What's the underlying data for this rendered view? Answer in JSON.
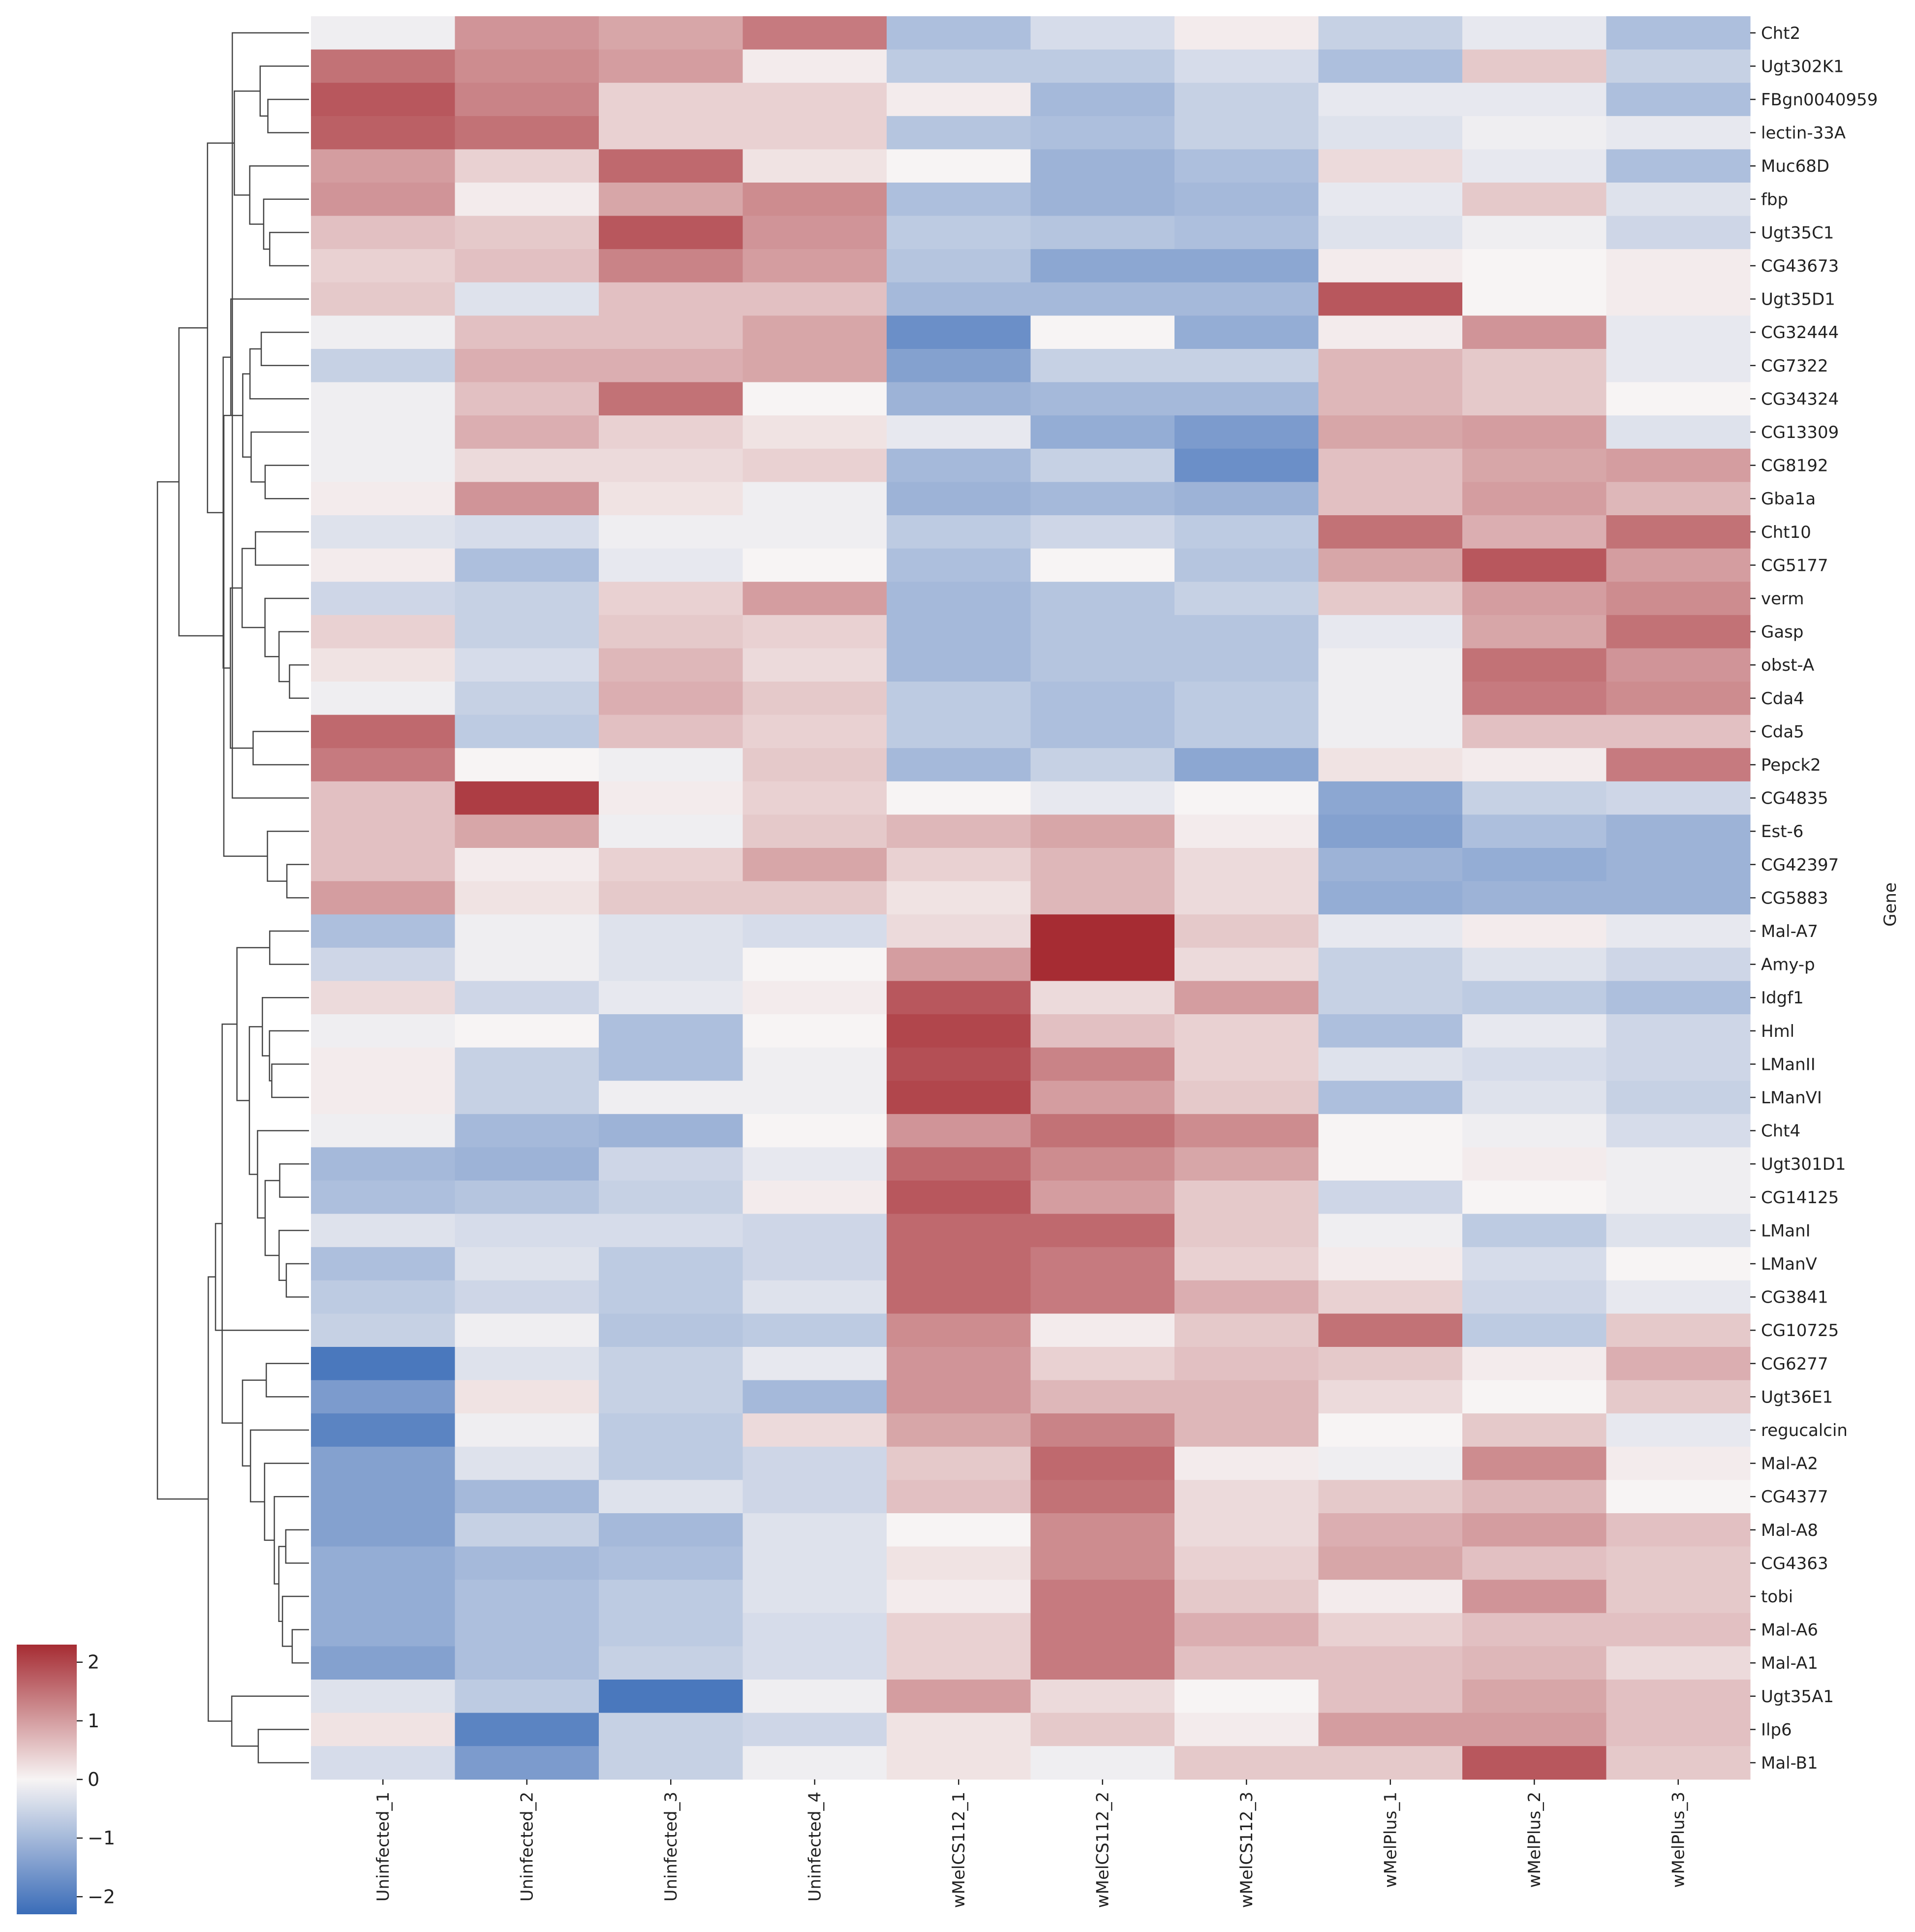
{
  "chart_data": {
    "type": "heatmap",
    "title": "",
    "ylabel": "Gene",
    "xlabel": "",
    "colormap": "vlag",
    "colors": {
      "low": "#3a6cb8",
      "mid": "#f7f4f4",
      "high": "#a62c33"
    },
    "vmin": -2.3,
    "vmax": 2.3,
    "colorbar_ticks": [
      2,
      1,
      0,
      -1,
      -2
    ],
    "colorbar_tick_labels": [
      "2",
      "1",
      "0",
      "−1",
      "−2"
    ],
    "legend_position": "bottom-left",
    "columns": [
      "Uninfected_1",
      "Uninfected_2",
      "Uninfected_3",
      "Uninfected_4",
      "wMelCS112_1",
      "wMelCS112_2",
      "wMelCS112_3",
      "wMelPlus_1",
      "wMelPlus_2",
      "wMelPlus_3"
    ],
    "rows": [
      {
        "gene": "Cht2",
        "values": [
          -0.1,
          1.1,
          0.9,
          1.4,
          -0.9,
          -0.4,
          0.1,
          -0.6,
          -0.2,
          -0.9
        ]
      },
      {
        "gene": "Ugt302K1",
        "values": [
          1.5,
          1.2,
          1.0,
          0.1,
          -0.7,
          -0.7,
          -0.4,
          -0.9,
          0.5,
          -0.6
        ]
      },
      {
        "gene": "FBgn0040959",
        "values": [
          1.8,
          1.3,
          0.4,
          0.4,
          0.1,
          -1.0,
          -0.6,
          -0.2,
          -0.2,
          -0.9
        ]
      },
      {
        "gene": "lectin-33A",
        "values": [
          1.7,
          1.5,
          0.4,
          0.4,
          -0.8,
          -0.9,
          -0.6,
          -0.3,
          -0.1,
          -0.2
        ]
      },
      {
        "gene": "Muc68D",
        "values": [
          1.0,
          0.4,
          1.6,
          0.2,
          0.0,
          -1.1,
          -0.9,
          0.3,
          -0.2,
          -0.9
        ]
      },
      {
        "gene": "fbp",
        "values": [
          1.1,
          0.1,
          0.9,
          1.2,
          -0.9,
          -1.1,
          -1.0,
          -0.2,
          0.5,
          -0.3
        ]
      },
      {
        "gene": "Ugt35C1",
        "values": [
          0.6,
          0.5,
          1.8,
          1.1,
          -0.7,
          -0.8,
          -0.9,
          -0.3,
          -0.1,
          -0.5
        ]
      },
      {
        "gene": "CG43673",
        "values": [
          0.4,
          0.6,
          1.3,
          1.0,
          -0.8,
          -1.3,
          -1.3,
          0.1,
          0.0,
          0.1
        ]
      },
      {
        "gene": "Ugt35D1",
        "values": [
          0.5,
          -0.3,
          0.6,
          0.6,
          -1.0,
          -1.0,
          -1.0,
          1.8,
          0.0,
          0.1
        ]
      },
      {
        "gene": "CG32444",
        "values": [
          -0.1,
          0.6,
          0.6,
          0.9,
          -1.7,
          0.0,
          -1.2,
          0.1,
          1.1,
          -0.2
        ]
      },
      {
        "gene": "CG7322",
        "values": [
          -0.6,
          0.8,
          0.8,
          0.9,
          -1.4,
          -0.6,
          -0.6,
          0.7,
          0.5,
          -0.2
        ]
      },
      {
        "gene": "CG34324",
        "values": [
          -0.1,
          0.6,
          1.5,
          0.0,
          -1.1,
          -1.0,
          -1.0,
          0.7,
          0.5,
          0.0
        ]
      },
      {
        "gene": "CG13309",
        "values": [
          -0.1,
          0.8,
          0.4,
          0.2,
          -0.2,
          -1.2,
          -1.5,
          0.9,
          1.0,
          -0.3
        ]
      },
      {
        "gene": "CG8192",
        "values": [
          -0.1,
          0.3,
          0.3,
          0.4,
          -1.0,
          -0.6,
          -1.7,
          0.6,
          0.9,
          1.0
        ]
      },
      {
        "gene": "Gba1a",
        "values": [
          0.1,
          1.1,
          0.2,
          -0.1,
          -1.1,
          -1.0,
          -1.1,
          0.6,
          1.0,
          0.7
        ]
      },
      {
        "gene": "Cht10",
        "values": [
          -0.3,
          -0.4,
          -0.1,
          -0.1,
          -0.7,
          -0.5,
          -0.7,
          1.5,
          0.8,
          1.5
        ]
      },
      {
        "gene": "CG5177",
        "values": [
          0.1,
          -0.9,
          -0.2,
          0.0,
          -0.9,
          0.0,
          -0.8,
          0.9,
          1.8,
          1.0
        ]
      },
      {
        "gene": "verm",
        "values": [
          -0.5,
          -0.6,
          0.4,
          1.0,
          -1.0,
          -0.8,
          -0.6,
          0.5,
          1.0,
          1.2
        ]
      },
      {
        "gene": "Gasp",
        "values": [
          0.4,
          -0.6,
          0.5,
          0.4,
          -1.0,
          -0.8,
          -0.8,
          -0.2,
          0.9,
          1.5
        ]
      },
      {
        "gene": "obst-A",
        "values": [
          0.2,
          -0.4,
          0.7,
          0.3,
          -1.0,
          -0.8,
          -0.8,
          -0.1,
          1.5,
          1.1
        ]
      },
      {
        "gene": "Cda4",
        "values": [
          -0.1,
          -0.6,
          0.8,
          0.5,
          -0.7,
          -0.9,
          -0.7,
          -0.1,
          1.4,
          1.2
        ]
      },
      {
        "gene": "Cda5",
        "values": [
          1.6,
          -0.7,
          0.6,
          0.4,
          -0.7,
          -0.9,
          -0.7,
          -0.1,
          0.6,
          0.6
        ]
      },
      {
        "gene": "Pepck2",
        "values": [
          1.4,
          0.0,
          -0.1,
          0.5,
          -1.0,
          -0.6,
          -1.3,
          0.2,
          0.1,
          1.4
        ]
      },
      {
        "gene": "CG4835",
        "values": [
          0.6,
          2.1,
          0.1,
          0.4,
          0.0,
          -0.2,
          0.0,
          -1.3,
          -0.6,
          -0.5
        ]
      },
      {
        "gene": "Est-6",
        "values": [
          0.6,
          0.9,
          -0.1,
          0.5,
          0.7,
          0.9,
          0.1,
          -1.4,
          -0.9,
          -1.1
        ]
      },
      {
        "gene": "CG42397",
        "values": [
          0.6,
          0.1,
          0.4,
          0.9,
          0.4,
          0.7,
          0.3,
          -1.1,
          -1.2,
          -1.1
        ]
      },
      {
        "gene": "CG5883",
        "values": [
          1.0,
          0.2,
          0.5,
          0.5,
          0.2,
          0.7,
          0.3,
          -1.2,
          -1.1,
          -1.1
        ]
      },
      {
        "gene": "Mal-A7",
        "values": [
          -0.9,
          -0.1,
          -0.3,
          -0.4,
          0.3,
          2.3,
          0.5,
          -0.2,
          0.1,
          -0.2
        ]
      },
      {
        "gene": "Amy-p",
        "values": [
          -0.5,
          -0.1,
          -0.3,
          0.0,
          1.0,
          2.3,
          0.3,
          -0.6,
          -0.3,
          -0.5
        ]
      },
      {
        "gene": "Idgf1",
        "values": [
          0.3,
          -0.5,
          -0.2,
          0.1,
          1.8,
          0.3,
          1.0,
          -0.6,
          -0.7,
          -0.9
        ]
      },
      {
        "gene": "Hml",
        "values": [
          -0.1,
          0.0,
          -0.9,
          0.0,
          2.0,
          0.6,
          0.4,
          -0.9,
          -0.2,
          -0.5
        ]
      },
      {
        "gene": "LManII",
        "values": [
          0.1,
          -0.6,
          -0.9,
          -0.1,
          1.9,
          1.3,
          0.4,
          -0.3,
          -0.4,
          -0.5
        ]
      },
      {
        "gene": "LManVI",
        "values": [
          0.1,
          -0.6,
          -0.1,
          -0.1,
          2.0,
          1.0,
          0.5,
          -0.9,
          -0.3,
          -0.6
        ]
      },
      {
        "gene": "Cht4",
        "values": [
          -0.1,
          -1.0,
          -1.1,
          0.0,
          1.1,
          1.5,
          1.2,
          0.0,
          -0.1,
          -0.4
        ]
      },
      {
        "gene": "Ugt301D1",
        "values": [
          -1.0,
          -1.1,
          -0.5,
          -0.2,
          1.6,
          1.2,
          0.9,
          0.0,
          0.1,
          -0.1
        ]
      },
      {
        "gene": "CG14125",
        "values": [
          -0.9,
          -0.8,
          -0.6,
          0.1,
          1.8,
          1.0,
          0.5,
          -0.5,
          0.0,
          -0.1
        ]
      },
      {
        "gene": "LManI",
        "values": [
          -0.3,
          -0.4,
          -0.4,
          -0.5,
          1.6,
          1.6,
          0.5,
          -0.1,
          -0.7,
          -0.3
        ]
      },
      {
        "gene": "LManV",
        "values": [
          -0.9,
          -0.3,
          -0.7,
          -0.5,
          1.6,
          1.4,
          0.4,
          0.1,
          -0.4,
          0.0
        ]
      },
      {
        "gene": "CG3841",
        "values": [
          -0.7,
          -0.5,
          -0.7,
          -0.3,
          1.6,
          1.4,
          0.8,
          0.4,
          -0.5,
          -0.2
        ]
      },
      {
        "gene": "CG10725",
        "values": [
          -0.6,
          -0.1,
          -0.8,
          -0.7,
          1.2,
          0.1,
          0.5,
          1.5,
          -0.7,
          0.5
        ]
      },
      {
        "gene": "CG6277",
        "values": [
          -2.1,
          -0.3,
          -0.6,
          -0.2,
          1.1,
          0.4,
          0.6,
          0.5,
          0.1,
          0.8
        ]
      },
      {
        "gene": "Ugt36E1",
        "values": [
          -1.5,
          0.2,
          -0.6,
          -1.0,
          1.1,
          0.7,
          0.7,
          0.3,
          0.0,
          0.5
        ]
      },
      {
        "gene": "regucalcin",
        "values": [
          -1.9,
          -0.1,
          -0.7,
          0.3,
          0.9,
          1.3,
          0.7,
          0.0,
          0.5,
          -0.2
        ]
      },
      {
        "gene": "Mal-A2",
        "values": [
          -1.4,
          -0.3,
          -0.7,
          -0.5,
          0.5,
          1.6,
          0.1,
          -0.1,
          1.2,
          0.1
        ]
      },
      {
        "gene": "CG4377",
        "values": [
          -1.4,
          -1.0,
          -0.3,
          -0.5,
          0.6,
          1.5,
          0.3,
          0.5,
          0.7,
          0.0
        ]
      },
      {
        "gene": "Mal-A8",
        "values": [
          -1.4,
          -0.6,
          -1.0,
          -0.3,
          0.0,
          1.2,
          0.3,
          0.8,
          1.0,
          0.6
        ]
      },
      {
        "gene": "CG4363",
        "values": [
          -1.2,
          -1.0,
          -0.9,
          -0.3,
          0.2,
          1.2,
          0.4,
          0.9,
          0.6,
          0.5
        ]
      },
      {
        "gene": "tobi",
        "values": [
          -1.2,
          -0.9,
          -0.7,
          -0.3,
          0.1,
          1.4,
          0.5,
          0.1,
          1.1,
          0.5
        ]
      },
      {
        "gene": "Mal-A6",
        "values": [
          -1.2,
          -0.9,
          -0.7,
          -0.4,
          0.4,
          1.4,
          0.8,
          0.4,
          0.6,
          0.6
        ]
      },
      {
        "gene": "Mal-A1",
        "values": [
          -1.4,
          -0.9,
          -0.6,
          -0.4,
          0.4,
          1.4,
          0.6,
          0.6,
          0.7,
          0.3
        ]
      },
      {
        "gene": "Ugt35A1",
        "values": [
          -0.3,
          -0.7,
          -2.1,
          -0.1,
          1.0,
          0.3,
          0.0,
          0.6,
          0.9,
          0.6
        ]
      },
      {
        "gene": "Ilp6",
        "values": [
          0.2,
          -1.9,
          -0.6,
          -0.5,
          0.2,
          0.5,
          0.1,
          1.0,
          1.0,
          0.6
        ]
      },
      {
        "gene": "Mal-B1",
        "values": [
          -0.4,
          -1.5,
          -0.6,
          -0.1,
          0.2,
          -0.1,
          0.5,
          0.5,
          1.8,
          0.5
        ]
      }
    ]
  }
}
